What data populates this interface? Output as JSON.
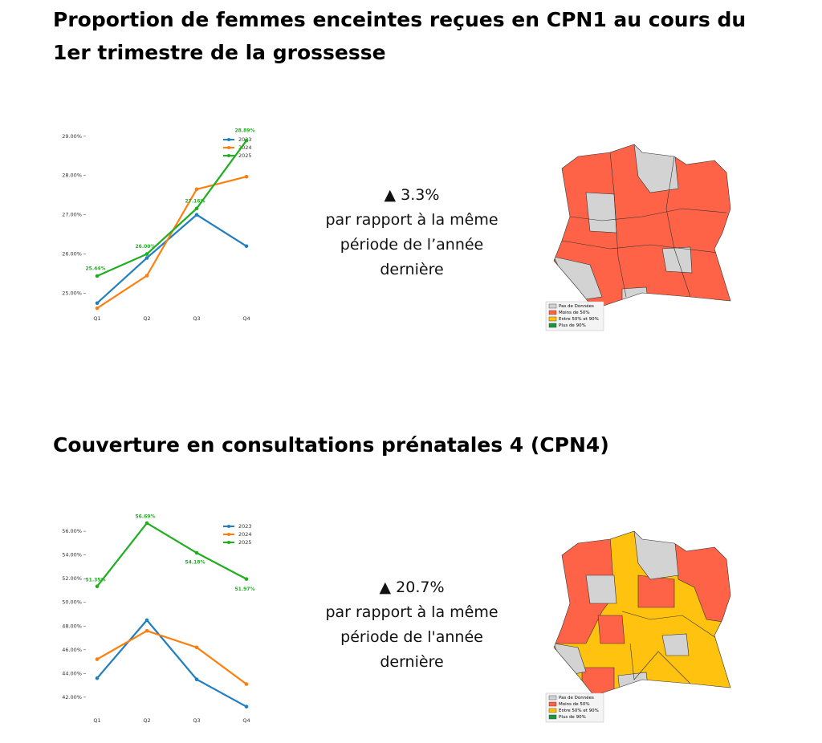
{
  "sections": [
    {
      "title": "Proportion de femmes enceintes reçues en CPN1 au cours du 1er trimestre de la grossesse",
      "change": "▲ 3.3%",
      "note": "par rapport à la même période de l’année dernière",
      "map_legend": [
        "Pas de Données",
        "Moins de 50%",
        "Entre 50% et 90%",
        "Plus de 90%"
      ]
    },
    {
      "title": "Couverture en consultations prénatales 4 (CPN4)",
      "change": "▲ 20.7%",
      "note": "par rapport à la même période de l'année dernière",
      "map_legend": [
        "Pas de Données",
        "Moins de 50%",
        "Entre 50% et 90%",
        "Plus de 90%"
      ]
    }
  ],
  "chart_data": [
    {
      "type": "line",
      "categories": [
        "Q1",
        "Q2",
        "Q3",
        "Q4"
      ],
      "series": [
        {
          "name": "2023",
          "color": "#1f7fc0",
          "values": [
            24.75,
            25.9,
            27.0,
            26.2
          ]
        },
        {
          "name": "2024",
          "color": "#ff7f0e",
          "values": [
            24.62,
            25.45,
            27.65,
            27.97
          ]
        },
        {
          "name": "2025",
          "color": "#1fae1f",
          "values": [
            25.44,
            26.0,
            27.16,
            28.89
          ],
          "value_labels": [
            "25.44%",
            "26.00%",
            "27.16%",
            "28.89%"
          ]
        }
      ],
      "ylim": [
        24.5,
        29.2
      ],
      "yticks": [
        {
          "value": 25,
          "label": "25.00%"
        },
        {
          "value": 26,
          "label": "26.00%"
        },
        {
          "value": 27,
          "label": "27.00%"
        },
        {
          "value": 28,
          "label": "28.00%"
        },
        {
          "value": 29,
          "label": "29.00%"
        }
      ],
      "legend": "upper right",
      "grid": false
    },
    {
      "type": "line",
      "categories": [
        "Q1",
        "Q2",
        "Q3",
        "Q4"
      ],
      "series": [
        {
          "name": "2023",
          "color": "#1f7fc0",
          "values": [
            43.6,
            48.5,
            43.5,
            41.2
          ]
        },
        {
          "name": "2024",
          "color": "#ff7f0e",
          "values": [
            45.2,
            47.6,
            46.2,
            43.1
          ]
        },
        {
          "name": "2025",
          "color": "#1fae1f",
          "values": [
            51.35,
            56.69,
            54.18,
            51.97
          ],
          "value_labels": [
            "51.35%",
            "56.69%",
            "54.18%",
            "51.97%"
          ]
        }
      ],
      "ylim": [
        40.5,
        57.5
      ],
      "yticks": [
        {
          "value": 42,
          "label": "42.00%"
        },
        {
          "value": 44,
          "label": "44.00%"
        },
        {
          "value": 46,
          "label": "46.00%"
        },
        {
          "value": 48,
          "label": "48.00%"
        },
        {
          "value": 50,
          "label": "50.00%"
        },
        {
          "value": 52,
          "label": "52.00%"
        },
        {
          "value": 54,
          "label": "54.00%"
        },
        {
          "value": 56,
          "label": "56.00%"
        }
      ],
      "legend": "upper right",
      "grid": false
    }
  ]
}
